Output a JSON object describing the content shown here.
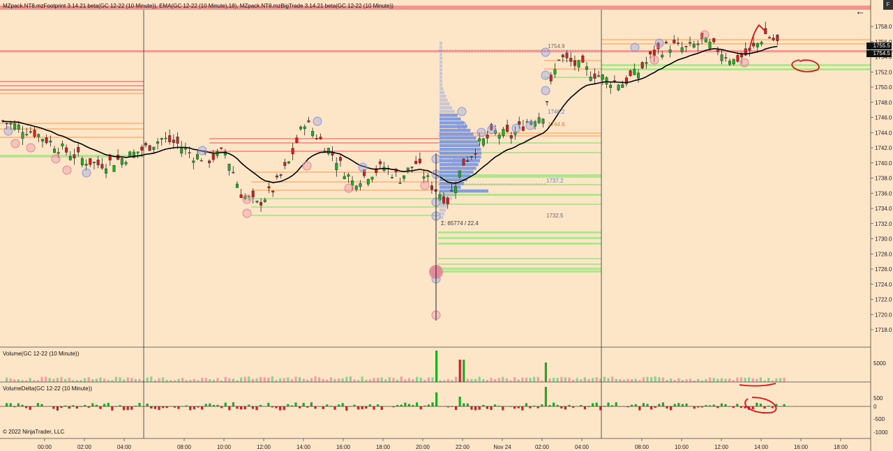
{
  "indicators": {
    "price_panel_title": "MZpack.NT8.mzFootprint 3.14.21 beta(GC 12-22 (10 Minute)), EMA(GC 12-22 (10 Minute),18), MZpack.NT8.mzBigTrade 3.14.21 beta(GC 12-22 (10 Minute))",
    "volume_title": "Volume(GC 12-22 (10 Minute))",
    "delta_title": "VolumeDelta(GC 12-22 (10 Minute))"
  },
  "footer": {
    "copyright": "© 2022 NinjaTrader, LLC"
  },
  "price_badges": {
    "upper": "1755.5",
    "lower": "1754.5"
  },
  "profile_labels": {
    "poc_high": "1754.9",
    "vah": "1746.2",
    "vwap": "1744.6",
    "poc": "1737.2",
    "val": "1732.5",
    "summary": "Σ: 65774 / 22.4"
  },
  "colors": {
    "background": "#fde5c8",
    "bull_candle": "#22aa22",
    "bear_candle": "#cc2222",
    "ema": "#000000",
    "volume_up": "#8fd08f",
    "volume_down": "#f0a0a0",
    "profile": "#7090e0",
    "bigtrade_buy": "#8899dd",
    "bigtrade_sell": "#e08898",
    "level_red": "#f08080",
    "level_orange": "#ffb070",
    "level_green": "#a0e080"
  },
  "chart_data": {
    "type": "candlestick",
    "instrument": "GC 12-22 (10 Minute)",
    "x_ticks": [
      "00:00",
      "02:00",
      "04:00",
      "08:00",
      "10:00",
      "12:00",
      "14:00",
      "16:00",
      "18:00",
      "20:00",
      "22:00",
      "Nov 24",
      "02:00",
      "04:00",
      "08:00",
      "10:00",
      "12:00",
      "14:00",
      "16:00",
      "18:00"
    ],
    "y_ticks": [
      "1758.0",
      "1756.0",
      "1754.0",
      "1752.0",
      "1750.0",
      "1748.0",
      "1746.0",
      "1744.0",
      "1742.0",
      "1740.0",
      "1738.0",
      "1736.0",
      "1734.0",
      "1732.0",
      "1730.0",
      "1728.0",
      "1726.0",
      "1724.0",
      "1722.0",
      "1720.0",
      "1718.0"
    ],
    "ylim": [
      1717,
      1760
    ],
    "approx_close_path": [
      [
        0,
        1745.5
      ],
      [
        2,
        1744.0
      ],
      [
        4,
        1741.5
      ],
      [
        5,
        1740.5
      ],
      [
        6,
        1739.8
      ],
      [
        7,
        1740.2
      ],
      [
        8,
        1741.0
      ],
      [
        9,
        1742.0
      ],
      [
        10,
        1743.2
      ],
      [
        11,
        1742.5
      ],
      [
        12,
        1741.0
      ],
      [
        13,
        1740.5
      ],
      [
        14,
        1741.5
      ],
      [
        15,
        1736.0
      ],
      [
        16,
        1734.5
      ],
      [
        17,
        1736.5
      ],
      [
        18,
        1740.0
      ],
      [
        19,
        1745.5
      ],
      [
        20,
        1743.0
      ],
      [
        21,
        1740.5
      ],
      [
        22,
        1737.5
      ],
      [
        23,
        1738.5
      ],
      [
        24,
        1739.5
      ],
      [
        25,
        1738.0
      ],
      [
        26,
        1740.0
      ],
      [
        27,
        1737.0
      ],
      [
        28,
        1735.0
      ],
      [
        29,
        1740.0
      ],
      [
        30,
        1742.5
      ],
      [
        31,
        1744.0
      ],
      [
        32,
        1743.5
      ],
      [
        33,
        1745.5
      ],
      [
        34,
        1746.5
      ],
      [
        35,
        1754.0
      ],
      [
        36,
        1753.0
      ],
      [
        37,
        1752.0
      ],
      [
        38,
        1751.0
      ],
      [
        39,
        1750.5
      ],
      [
        40,
        1752.0
      ],
      [
        41,
        1754.5
      ],
      [
        42,
        1755.5
      ],
      [
        43,
        1755.0
      ],
      [
        44,
        1756.0
      ],
      [
        45,
        1755.0
      ],
      [
        46,
        1753.5
      ],
      [
        47,
        1754.5
      ],
      [
        48,
        1757.0
      ],
      [
        49,
        1755.5
      ]
    ],
    "ema_period": 18,
    "volume_panel": {
      "yticks": [
        "5000"
      ]
    },
    "delta_panel": {
      "yticks": [
        "500",
        "0",
        "-500",
        "-1000"
      ]
    }
  }
}
